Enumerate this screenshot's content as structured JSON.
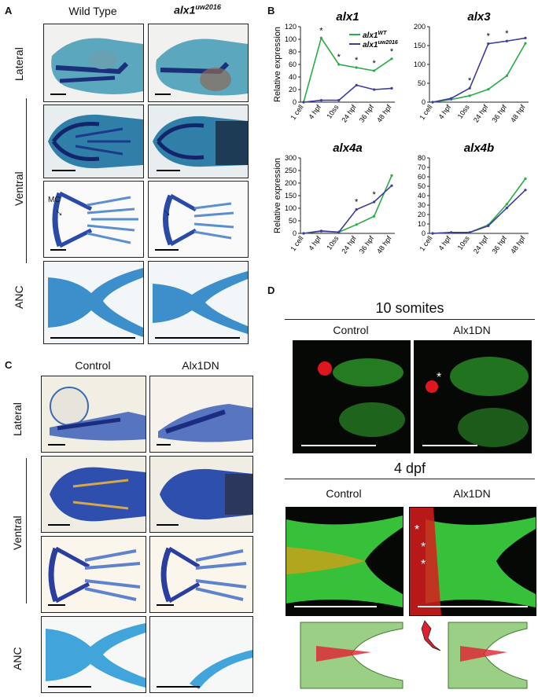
{
  "panelA": {
    "letter": "A",
    "col_wt": "Wild Type",
    "col_mut_base": "alx1",
    "col_mut_sup": "uw2016",
    "rows": {
      "lateral": "Lateral",
      "ventral": "Ventral",
      "anc": "ANC"
    },
    "mc_label": "MC"
  },
  "panelB": {
    "letter": "B",
    "legend_wt_base": "alx1",
    "legend_wt_sup": "WT",
    "legend_mut_base": "alx1",
    "legend_mut_sup": "uw2016",
    "colors": {
      "wt": "#2bab45",
      "mut": "#3c3c9c"
    }
  },
  "panelC": {
    "letter": "C",
    "col_ctrl": "Control",
    "col_dn": "Alx1DN",
    "rows": {
      "lateral": "Lateral",
      "ventral": "Ventral",
      "anc": "ANC"
    }
  },
  "panelD": {
    "letter": "D",
    "title_10s": "10 somites",
    "title_4dpf": "4 dpf",
    "col_ctrl": "Control",
    "col_dn": "Alx1DN",
    "asterisk": "*"
  },
  "chart_data": [
    {
      "type": "line",
      "title": "alx1",
      "ylabel": "Relative expression",
      "categories": [
        "1 cell",
        "4 hpf",
        "10ss",
        "24 hpf",
        "36 hpf",
        "48 hpf"
      ],
      "ylim": [
        0,
        120
      ],
      "yticks": [
        0,
        20,
        40,
        60,
        80,
        100,
        120
      ],
      "series": [
        {
          "name": "alx1WT",
          "values": [
            0,
            102,
            60,
            55,
            50,
            69
          ]
        },
        {
          "name": "alx1uw2016",
          "values": [
            0,
            3,
            3,
            27,
            20,
            22
          ]
        }
      ],
      "significant": [
        1,
        2,
        3,
        4,
        5
      ]
    },
    {
      "type": "line",
      "title": "alx3",
      "ylabel": "",
      "categories": [
        "1 cell",
        "4 hpf",
        "10ss",
        "24 hpf",
        "36 hpf",
        "48 hpf"
      ],
      "ylim": [
        0,
        200
      ],
      "yticks": [
        0,
        50,
        100,
        150,
        200
      ],
      "series": [
        {
          "name": "alx1WT",
          "values": [
            0,
            7,
            17,
            34,
            70,
            156
          ]
        },
        {
          "name": "alx1uw2016",
          "values": [
            0,
            10,
            37,
            155,
            162,
            170
          ]
        }
      ],
      "significant": [
        2,
        3,
        4
      ]
    },
    {
      "type": "line",
      "title": "alx4a",
      "ylabel": "Relative expression",
      "categories": [
        "1 cell",
        "4 hpf",
        "10ss",
        "24 hpf",
        "36 hpf",
        "48 hpf"
      ],
      "ylim": [
        0,
        300
      ],
      "yticks": [
        0,
        50,
        100,
        150,
        200,
        250,
        300
      ],
      "series": [
        {
          "name": "alx1WT",
          "values": [
            0,
            8,
            5,
            35,
            68,
            230
          ]
        },
        {
          "name": "alx1uw2016",
          "values": [
            0,
            10,
            5,
            95,
            125,
            190
          ]
        }
      ],
      "significant": [
        3,
        4
      ]
    },
    {
      "type": "line",
      "title": "alx4b",
      "ylabel": "",
      "categories": [
        "1 cell",
        "4 hpf",
        "10ss",
        "24 hpf",
        "36 hpf",
        "48 hpf"
      ],
      "ylim": [
        0,
        80
      ],
      "yticks": [
        0,
        10,
        20,
        30,
        40,
        50,
        60,
        70,
        80
      ],
      "series": [
        {
          "name": "alx1WT",
          "values": [
            0,
            1,
            1,
            9,
            31,
            58
          ]
        },
        {
          "name": "alx1uw2016",
          "values": [
            0,
            1,
            1,
            8,
            27,
            46
          ]
        }
      ],
      "significant": []
    }
  ]
}
